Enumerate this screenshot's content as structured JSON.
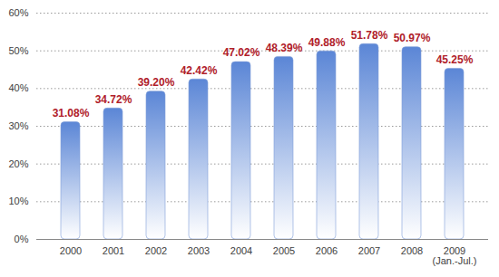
{
  "chart_data": {
    "type": "bar",
    "categories": [
      "2000",
      "2001",
      "2002",
      "2003",
      "2004",
      "2005",
      "2006",
      "2007",
      "2008",
      "2009\n(Jan.-Jul.)"
    ],
    "values": [
      31.08,
      34.72,
      39.2,
      42.42,
      47.02,
      48.39,
      49.88,
      51.78,
      50.97,
      45.25
    ],
    "value_labels": [
      "31.08%",
      "34.72%",
      "39.20%",
      "42.42%",
      "47.02%",
      "48.39%",
      "49.88%",
      "51.78%",
      "50.97%",
      "45.25%"
    ],
    "data_labels": true,
    "color": "#5b86d6",
    "ylim": [
      0,
      60
    ],
    "yticks": [
      {
        "value": 0,
        "label": "0%"
      },
      {
        "value": 10,
        "label": "10%"
      },
      {
        "value": 20,
        "label": "20%"
      },
      {
        "value": 30,
        "label": "30%"
      },
      {
        "value": 40,
        "label": "40%"
      },
      {
        "value": 50,
        "label": "50%"
      },
      {
        "value": 60,
        "label": "60%"
      }
    ],
    "grid": true
  }
}
